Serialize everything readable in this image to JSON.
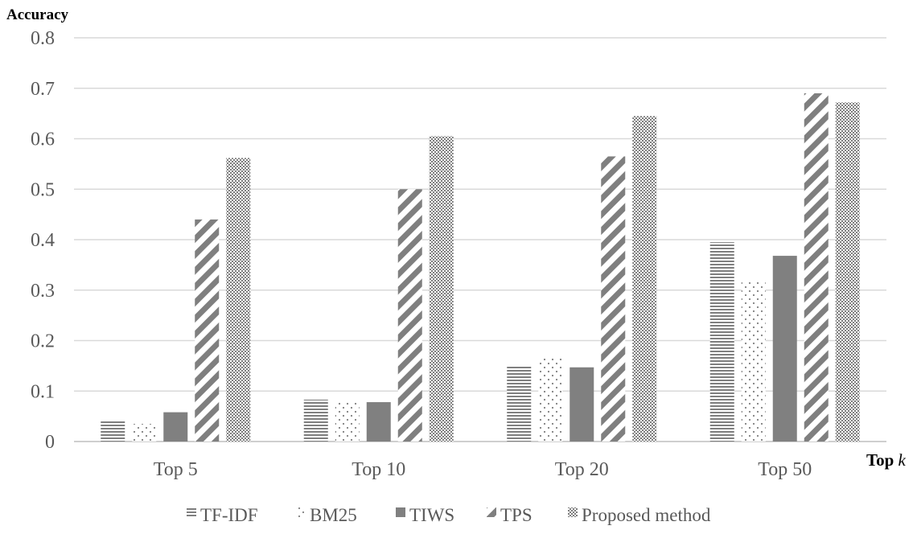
{
  "chart_data": {
    "type": "bar",
    "title": "",
    "ylabel": "Accuracy",
    "xlabel_prefix": "Top",
    "xlabel_var": "k",
    "categories": [
      "Top 5",
      "Top 10",
      "Top 20",
      "Top 50"
    ],
    "ylim": [
      0,
      0.8
    ],
    "yticks": [
      "0",
      "0.1",
      "0.2",
      "0.3",
      "0.4",
      "0.5",
      "0.6",
      "0.7",
      "0.8"
    ],
    "grid": true,
    "legend_position": "bottom",
    "series": [
      {
        "name": "TF-IDF",
        "pattern": "horizontal-lines",
        "values": [
          0.043,
          0.083,
          0.15,
          0.395
        ]
      },
      {
        "name": "BM25",
        "pattern": "dots",
        "values": [
          0.035,
          0.08,
          0.168,
          0.32
        ]
      },
      {
        "name": "TIWS",
        "pattern": "solid",
        "values": [
          0.058,
          0.078,
          0.147,
          0.368
        ]
      },
      {
        "name": "TPS",
        "pattern": "diagonal-stripes",
        "values": [
          0.44,
          0.5,
          0.565,
          0.69
        ]
      },
      {
        "name": "Proposed method",
        "pattern": "checker",
        "values": [
          0.562,
          0.605,
          0.645,
          0.672
        ]
      }
    ],
    "colors": {
      "bar": "#808080",
      "grid": "#d9d9d9",
      "text": "#595959"
    }
  }
}
